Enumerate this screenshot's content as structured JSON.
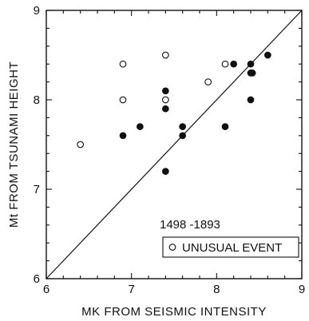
{
  "chart_data": {
    "type": "scatter",
    "xlabel": "MK FROM SEISMIC INTENSITY",
    "ylabel": "Mt FROM TSUNAMI HEIGHT",
    "xlim": [
      6,
      9
    ],
    "ylim": [
      6,
      9
    ],
    "xticks": [
      "6",
      "7",
      "8",
      "9"
    ],
    "yticks": [
      "6",
      "7",
      "8",
      "9"
    ],
    "annotation": "1498 -1893",
    "legend": {
      "position": "bottom-right",
      "label": "UNUSUAL EVENT",
      "marker": "open-circle"
    },
    "reference_line": {
      "from": [
        6,
        6
      ],
      "to": [
        9,
        9
      ]
    },
    "grid": false,
    "series": [
      {
        "marker": "filled-circle",
        "points": [
          [
            6.9,
            7.6
          ],
          [
            7.1,
            7.7
          ],
          [
            7.4,
            7.2
          ],
          [
            7.4,
            7.9
          ],
          [
            7.4,
            8.1
          ],
          [
            7.6,
            7.6
          ],
          [
            7.6,
            7.7
          ],
          [
            8.1,
            7.7
          ],
          [
            8.2,
            8.4
          ],
          [
            8.4,
            8.3
          ],
          [
            8.4,
            8.4
          ],
          [
            8.4,
            8.0
          ],
          [
            8.42,
            8.3
          ],
          [
            8.6,
            8.5
          ]
        ]
      },
      {
        "name": "UNUSUAL EVENT",
        "marker": "open-circle",
        "points": [
          [
            6.4,
            7.5
          ],
          [
            6.9,
            8.4
          ],
          [
            6.9,
            8.0
          ],
          [
            7.4,
            8.5
          ],
          [
            7.4,
            8.0
          ],
          [
            7.9,
            8.2
          ],
          [
            8.1,
            8.4
          ]
        ]
      }
    ]
  }
}
